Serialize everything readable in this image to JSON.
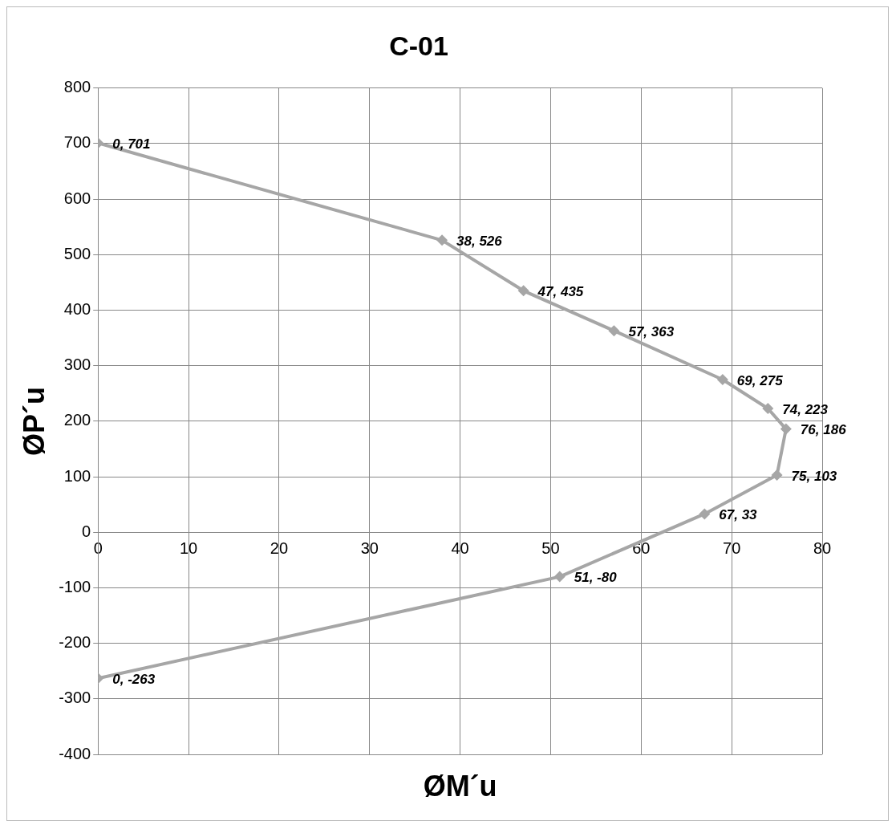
{
  "chart_data": {
    "type": "line",
    "title": "C-01",
    "xlabel": "ØM´u",
    "ylabel": "ØP´u",
    "x": [
      0,
      38,
      47,
      57,
      69,
      74,
      76,
      75,
      67,
      51,
      0
    ],
    "series": [
      {
        "color": "#a6a6a6",
        "values": [
          701,
          526,
          435,
          363,
          275,
          223,
          186,
          103,
          33,
          -80,
          -263
        ],
        "value_labels": [
          "0, 701",
          "38, 526",
          "47, 435",
          "57, 363",
          "69, 275",
          "74, 223",
          "76, 186",
          "75, 103",
          "67, 33",
          "51, -80",
          "0, -263"
        ]
      }
    ],
    "xlim": [
      0,
      80
    ],
    "xticks": [
      0,
      10,
      20,
      30,
      40,
      50,
      60,
      70,
      80
    ],
    "ylim": [
      -400,
      800
    ],
    "yticks": [
      -400,
      -300,
      -200,
      -100,
      0,
      100,
      200,
      300,
      400,
      500,
      600,
      700,
      800
    ],
    "grid": true,
    "legend": false,
    "marker": "diamond",
    "line_style": "solid"
  }
}
